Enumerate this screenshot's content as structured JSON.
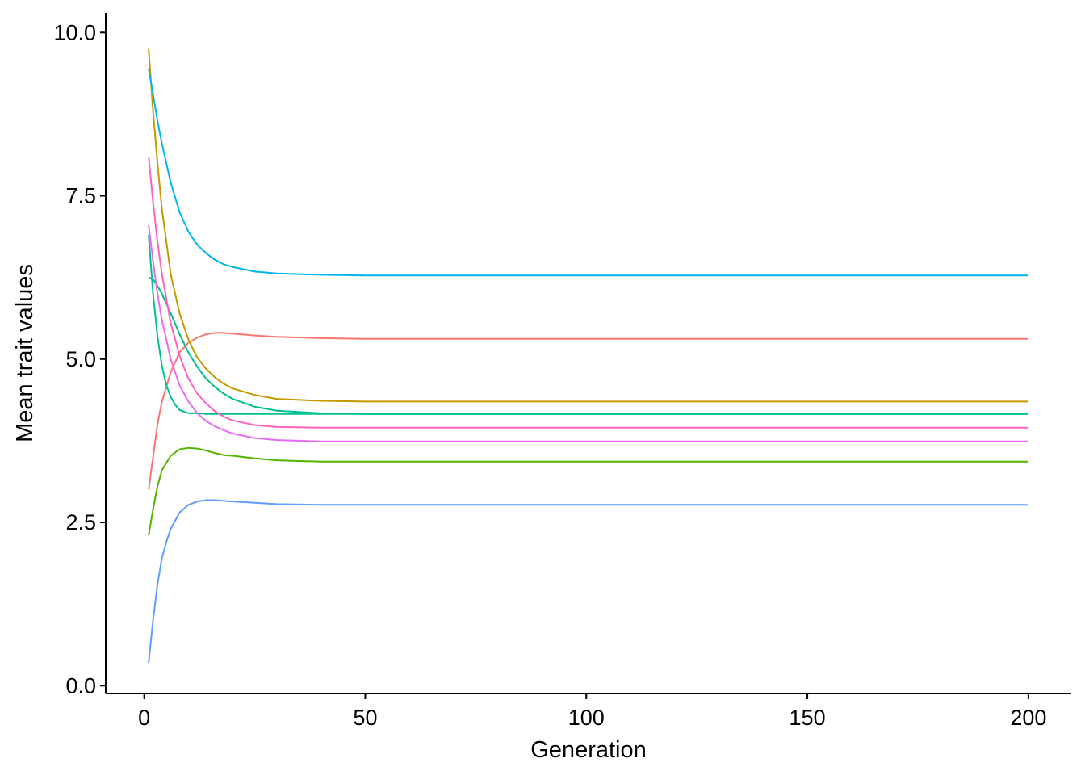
{
  "chart_data": {
    "type": "line",
    "xlabel": "Generation",
    "ylabel": "Mean trait values",
    "xlim": [
      -8.7,
      209.7
    ],
    "ylim": [
      -0.12,
      10.3
    ],
    "x_ticks": [
      0,
      50,
      100,
      150,
      200
    ],
    "x_tick_labels": [
      "0",
      "50",
      "100",
      "150",
      "200"
    ],
    "y_ticks": [
      0.0,
      2.5,
      5.0,
      7.5,
      10.0
    ],
    "y_tick_labels": [
      "0.0",
      "2.5",
      "5.0",
      "7.5",
      "10.0"
    ],
    "grid": false,
    "legend": "none",
    "series": [
      {
        "color": "#F8766D",
        "x": [
          1,
          2,
          3,
          4,
          6,
          8,
          10,
          12,
          14,
          16,
          18,
          20,
          25,
          30,
          40,
          50,
          75,
          100,
          150,
          200
        ],
        "y": [
          3.0,
          3.5,
          4.0,
          4.35,
          4.8,
          5.1,
          5.25,
          5.33,
          5.38,
          5.4,
          5.4,
          5.39,
          5.36,
          5.34,
          5.32,
          5.31,
          5.31,
          5.31,
          5.31,
          5.31
        ]
      },
      {
        "color": "#C49A00",
        "x": [
          1,
          2,
          3,
          4,
          6,
          8,
          10,
          12,
          14,
          16,
          18,
          20,
          25,
          30,
          40,
          50,
          75,
          100,
          150,
          200
        ],
        "y": [
          9.75,
          8.8,
          8.0,
          7.3,
          6.3,
          5.7,
          5.3,
          5.02,
          4.85,
          4.72,
          4.62,
          4.55,
          4.45,
          4.39,
          4.36,
          4.35,
          4.35,
          4.35,
          4.35,
          4.35
        ]
      },
      {
        "color": "#53B400",
        "x": [
          1,
          2,
          3,
          4,
          6,
          8,
          10,
          12,
          14,
          16,
          18,
          20,
          25,
          30,
          40,
          50,
          75,
          100,
          150,
          200
        ],
        "y": [
          2.3,
          2.7,
          3.05,
          3.3,
          3.52,
          3.62,
          3.64,
          3.63,
          3.6,
          3.56,
          3.53,
          3.52,
          3.48,
          3.45,
          3.43,
          3.43,
          3.43,
          3.43,
          3.43,
          3.43
        ]
      },
      {
        "color": "#00C094",
        "x": [
          1,
          2,
          3,
          4,
          5,
          6,
          7,
          8,
          10,
          12,
          14,
          20,
          30,
          40,
          50,
          75,
          100,
          150,
          200
        ],
        "y": [
          6.9,
          6.0,
          5.35,
          4.9,
          4.6,
          4.42,
          4.3,
          4.22,
          4.17,
          4.17,
          4.16,
          4.16,
          4.16,
          4.16,
          4.16,
          4.16,
          4.16,
          4.16,
          4.16
        ]
      },
      {
        "color": "#00B6EB",
        "x": [
          1,
          2,
          3,
          4,
          6,
          8,
          10,
          12,
          14,
          16,
          18,
          20,
          25,
          30,
          35,
          40,
          50,
          75,
          100,
          150,
          200
        ],
        "y": [
          9.45,
          9.05,
          8.65,
          8.3,
          7.7,
          7.25,
          6.95,
          6.75,
          6.62,
          6.52,
          6.45,
          6.41,
          6.34,
          6.31,
          6.3,
          6.29,
          6.28,
          6.28,
          6.28,
          6.28,
          6.28
        ]
      },
      {
        "color": "#00C08B",
        "x": [
          1,
          2,
          3,
          4,
          6,
          8,
          10,
          12,
          14,
          16,
          18,
          20,
          25,
          30,
          40,
          50,
          75,
          100,
          150,
          200
        ],
        "y": [
          6.25,
          6.22,
          6.12,
          6.0,
          5.7,
          5.38,
          5.1,
          4.88,
          4.7,
          4.57,
          4.47,
          4.39,
          4.27,
          4.21,
          4.17,
          4.16,
          4.16,
          4.16,
          4.16,
          4.16
        ]
      },
      {
        "color": "#619CFF",
        "x": [
          1,
          2,
          3,
          4,
          5,
          6,
          8,
          10,
          12,
          14,
          16,
          18,
          20,
          25,
          30,
          40,
          50,
          75,
          100,
          150,
          200
        ],
        "y": [
          0.35,
          1.0,
          1.55,
          1.95,
          2.2,
          2.4,
          2.65,
          2.77,
          2.82,
          2.84,
          2.84,
          2.83,
          2.82,
          2.8,
          2.78,
          2.77,
          2.77,
          2.77,
          2.77,
          2.77,
          2.77
        ]
      },
      {
        "color": "#E76BF3",
        "x": [
          1,
          2,
          3,
          4,
          6,
          8,
          10,
          12,
          14,
          16,
          18,
          20,
          25,
          30,
          40,
          50,
          75,
          100,
          150,
          200
        ],
        "y": [
          7.05,
          6.5,
          6.0,
          5.6,
          5.0,
          4.6,
          4.35,
          4.17,
          4.05,
          3.97,
          3.91,
          3.86,
          3.79,
          3.76,
          3.74,
          3.74,
          3.74,
          3.74,
          3.74,
          3.74
        ]
      },
      {
        "color": "#FF62BC",
        "x": [
          1,
          2,
          3,
          4,
          6,
          8,
          10,
          12,
          14,
          16,
          18,
          20,
          25,
          30,
          40,
          50,
          75,
          100,
          150,
          200
        ],
        "y": [
          8.1,
          7.4,
          6.8,
          6.3,
          5.55,
          5.05,
          4.7,
          4.47,
          4.32,
          4.2,
          4.12,
          4.06,
          3.99,
          3.96,
          3.95,
          3.95,
          3.95,
          3.95,
          3.95,
          3.95
        ]
      }
    ]
  }
}
